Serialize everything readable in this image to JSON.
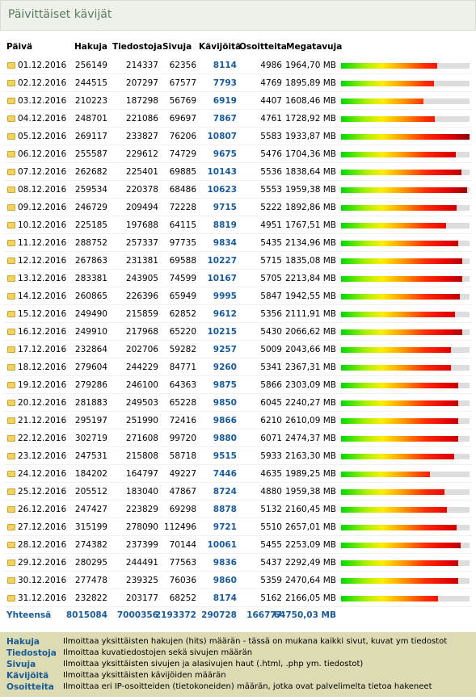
{
  "header": {
    "title": "Päivittäiset kävijät"
  },
  "table": {
    "columns": [
      "Päivä",
      "Hakuja",
      "Tiedostoja",
      "Sivuja",
      "Kävijöitä",
      "Osoitteita",
      "Megatavuja"
    ],
    "rows": [
      [
        "01.12.2016",
        256149,
        214337,
        62356,
        8114,
        4986,
        "1964,70 MB"
      ],
      [
        "02.12.2016",
        244515,
        207297,
        67577,
        7793,
        4769,
        "1895,89 MB"
      ],
      [
        "03.12.2016",
        210223,
        187298,
        56769,
        6919,
        4407,
        "1608,46 MB"
      ],
      [
        "04.12.2016",
        248701,
        221086,
        69697,
        7867,
        4761,
        "1728,92 MB"
      ],
      [
        "05.12.2016",
        269117,
        233827,
        76206,
        10807,
        5583,
        "1933,87 MB"
      ],
      [
        "06.12.2016",
        255587,
        229612,
        74729,
        9675,
        5476,
        "1704,36 MB"
      ],
      [
        "07.12.2016",
        262682,
        225401,
        69885,
        10143,
        5536,
        "1838,64 MB"
      ],
      [
        "08.12.2016",
        259534,
        220378,
        68486,
        10623,
        5553,
        "1959,38 MB"
      ],
      [
        "09.12.2016",
        246729,
        209494,
        72228,
        9715,
        5222,
        "1892,86 MB"
      ],
      [
        "10.12.2016",
        225185,
        197688,
        64115,
        8819,
        4951,
        "1767,51 MB"
      ],
      [
        "11.12.2016",
        288752,
        257337,
        97735,
        9834,
        5435,
        "2134,96 MB"
      ],
      [
        "12.12.2016",
        267863,
        231381,
        69588,
        10227,
        5715,
        "1835,08 MB"
      ],
      [
        "13.12.2016",
        283381,
        243905,
        74599,
        10167,
        5705,
        "2213,84 MB"
      ],
      [
        "14.12.2016",
        260865,
        226396,
        65949,
        9995,
        5847,
        "1942,55 MB"
      ],
      [
        "15.12.2016",
        249490,
        215859,
        62852,
        9612,
        5356,
        "2111,91 MB"
      ],
      [
        "16.12.2016",
        249910,
        217968,
        65220,
        10215,
        5430,
        "2066,62 MB"
      ],
      [
        "17.12.2016",
        232864,
        202706,
        59282,
        9257,
        5009,
        "2043,66 MB"
      ],
      [
        "18.12.2016",
        279604,
        244229,
        84771,
        9260,
        5341,
        "2367,31 MB"
      ],
      [
        "19.12.2016",
        279286,
        246100,
        64363,
        9875,
        5866,
        "2303,09 MB"
      ],
      [
        "20.12.2016",
        281883,
        249503,
        65228,
        9850,
        6045,
        "2240,27 MB"
      ],
      [
        "21.12.2016",
        295197,
        251990,
        72416,
        9866,
        6210,
        "2610,09 MB"
      ],
      [
        "22.12.2016",
        302719,
        271608,
        99720,
        9880,
        6071,
        "2474,37 MB"
      ],
      [
        "23.12.2016",
        247531,
        215808,
        58718,
        9515,
        5933,
        "2163,30 MB"
      ],
      [
        "24.12.2016",
        184202,
        164797,
        49227,
        7446,
        4635,
        "1989,25 MB"
      ],
      [
        "25.12.2016",
        205512,
        183040,
        47867,
        8724,
        4880,
        "1959,38 MB"
      ],
      [
        "26.12.2016",
        247427,
        223829,
        69298,
        8878,
        5132,
        "2160,45 MB"
      ],
      [
        "27.12.2016",
        315199,
        278090,
        112496,
        9721,
        5510,
        "2657,01 MB"
      ],
      [
        "28.12.2016",
        274382,
        237399,
        70144,
        10061,
        5455,
        "2253,09 MB"
      ],
      [
        "29.12.2016",
        280295,
        244491,
        77563,
        9836,
        5437,
        "2292,49 MB"
      ],
      [
        "30.12.2016",
        277478,
        239325,
        76036,
        9860,
        5359,
        "2470,64 MB"
      ],
      [
        "31.12.2016",
        232822,
        203177,
        68252,
        8174,
        5162,
        "2166,05 MB"
      ]
    ],
    "totals": [
      "Yhteensä",
      8015084,
      7000356,
      2193372,
      290728,
      166777,
      "64750,03 MB"
    ]
  },
  "legend": [
    {
      "term": "Hakuja",
      "description": "Ilmoittaa yksittäisten hakujen (hits) määrän - tässä on mukana kaikki sivut, kuvat ym tiedostot"
    },
    {
      "term": "Tiedostoja",
      "description": "Ilmoittaa kuvatiedostojen sekä sivujen määrän"
    },
    {
      "term": "Sivuja",
      "description": "Ilmoittaa yksittäisten sivujen ja alasivujen haut (.html, .php ym. tiedostot)"
    },
    {
      "term": "Kävijöitä",
      "description": "Ilmoittaa yksittäisten kävijöiden määrän"
    },
    {
      "term": "Osoitteita",
      "description": "Ilmoittaa eri IP-osoitteiden (tietokoneiden) määrän, jotka ovat palvelimelta tietoa hakeneet"
    }
  ]
}
